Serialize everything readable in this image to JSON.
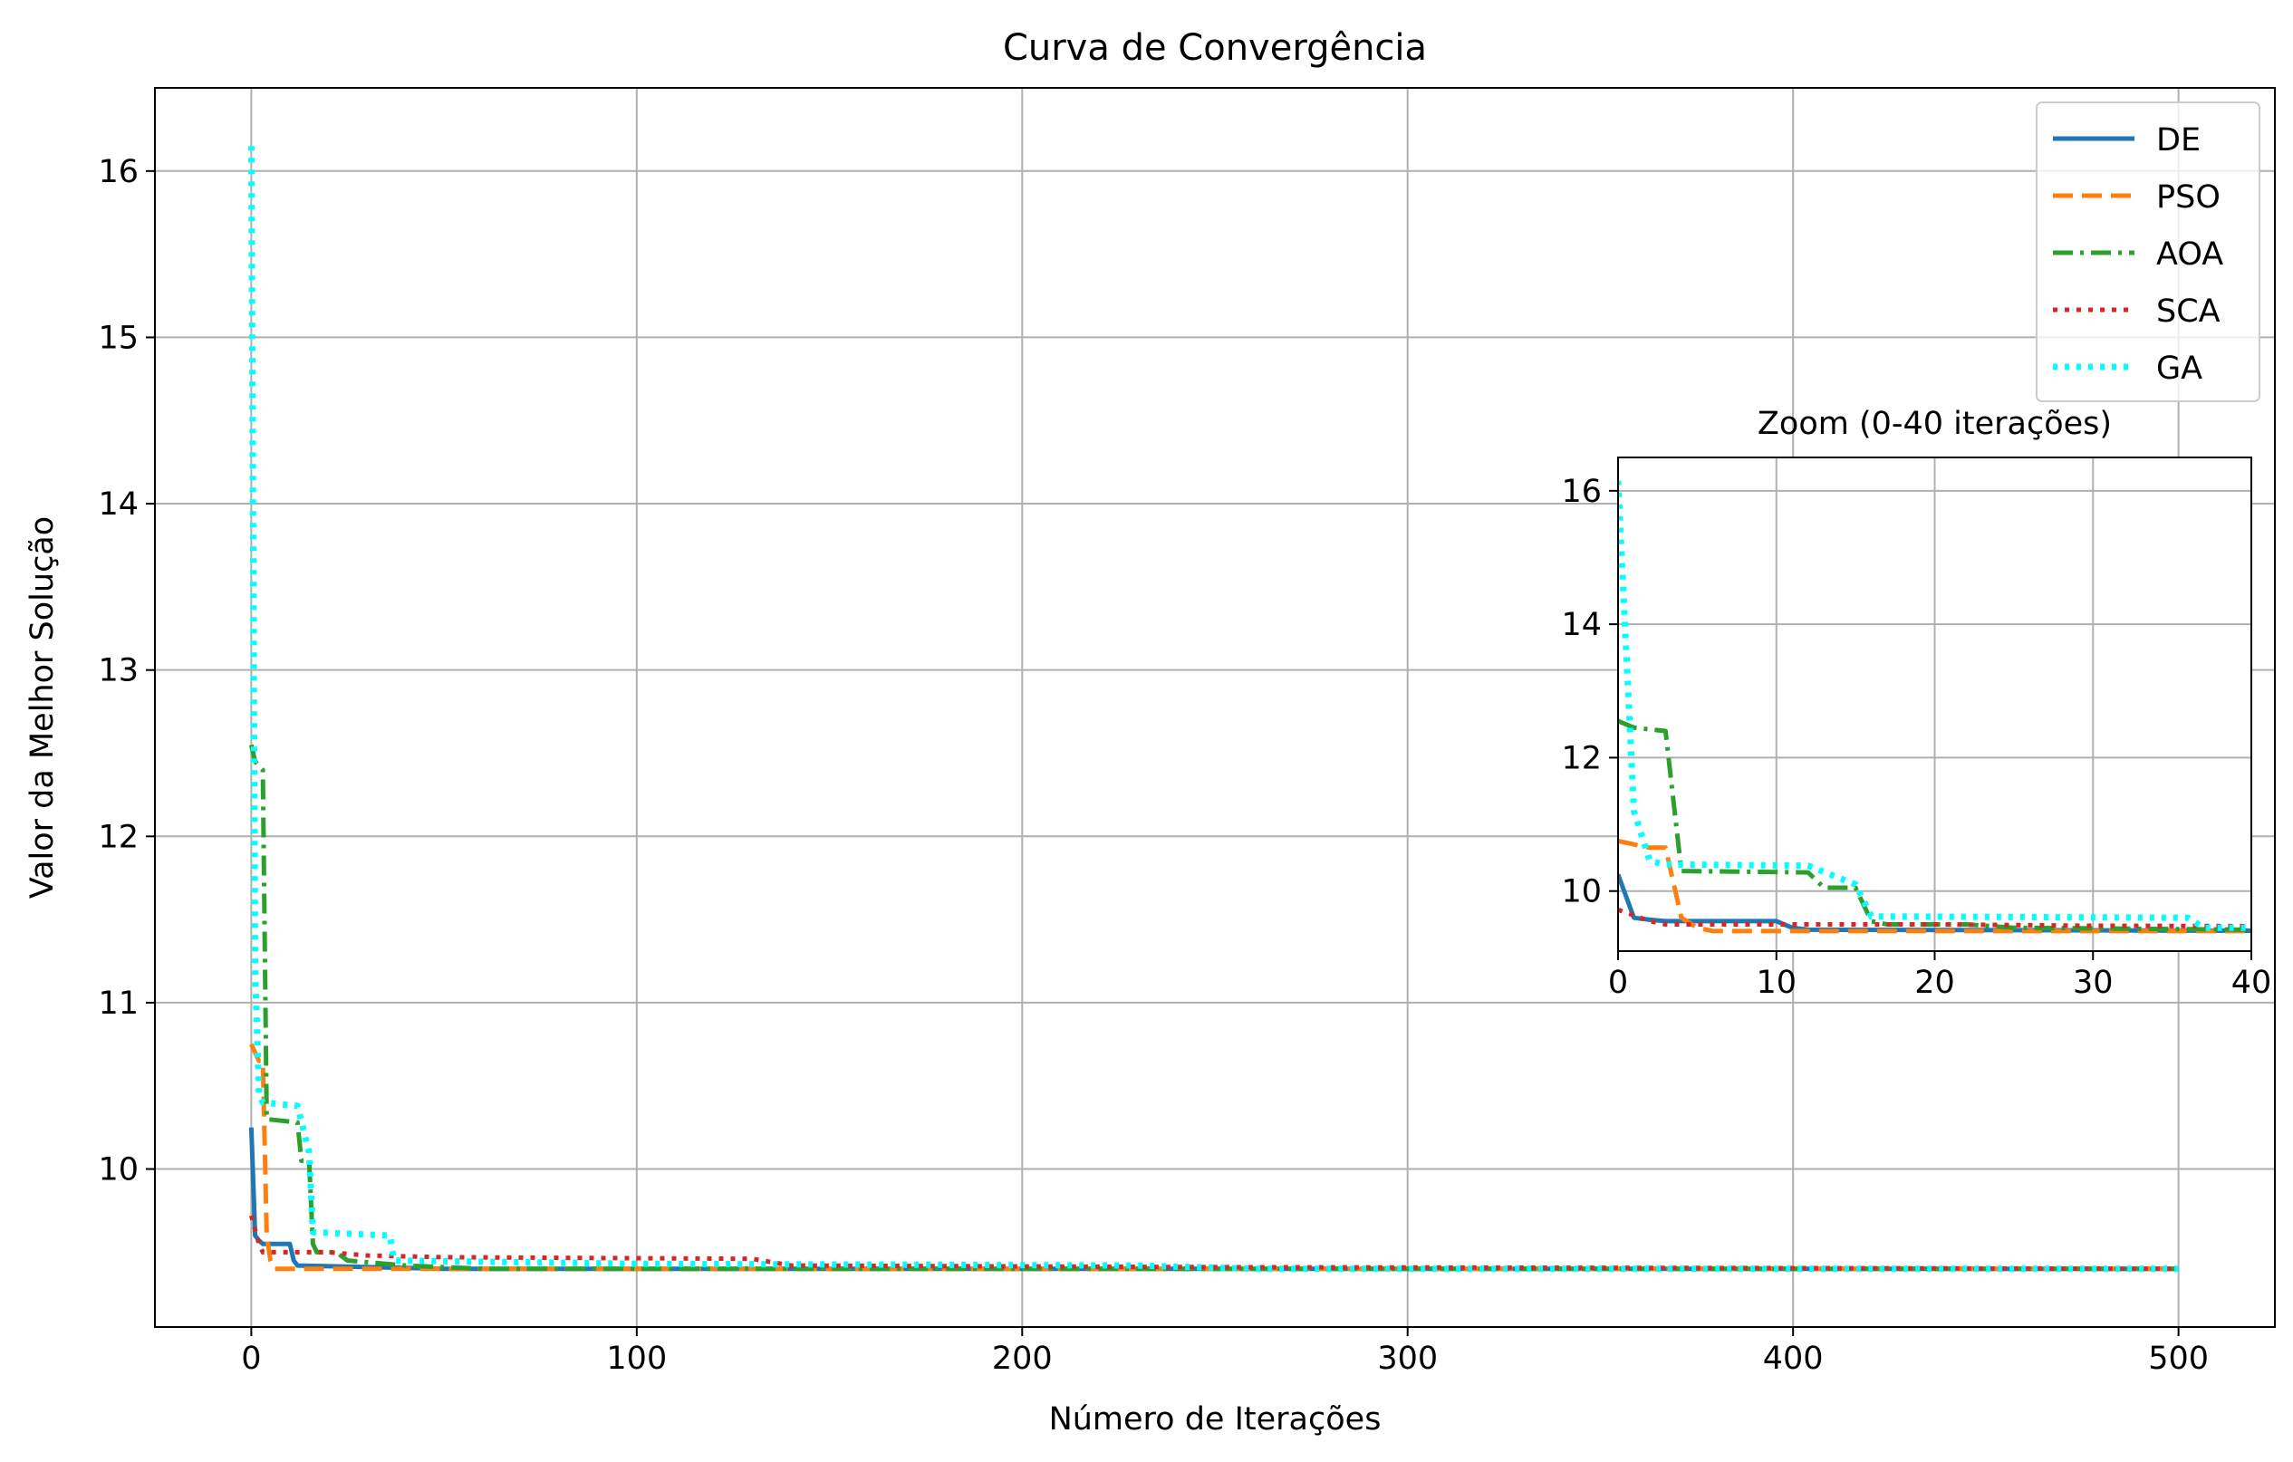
{
  "chart_data": [
    {
      "type": "line",
      "title": "Curva de Convergência",
      "xlabel": "Número de Iterações",
      "ylabel": "Valor da Melhor Solução",
      "xlim": [
        -25,
        525
      ],
      "ylim": [
        9.05,
        16.5
      ],
      "xticks": [
        0,
        100,
        200,
        300,
        400,
        500
      ],
      "yticks": [
        10,
        11,
        12,
        13,
        14,
        15,
        16
      ],
      "grid": true,
      "legend": "top-right",
      "series": [
        {
          "name": "DE",
          "color": "#1f77b4",
          "style": "solid",
          "points": [
            [
              0,
              10.25
            ],
            [
              1,
              9.6
            ],
            [
              2,
              9.57
            ],
            [
              3,
              9.55
            ],
            [
              10,
              9.55
            ],
            [
              11,
              9.45
            ],
            [
              12,
              9.42
            ],
            [
              50,
              9.4
            ],
            [
              500,
              9.4
            ]
          ]
        },
        {
          "name": "PSO",
          "color": "#ff7f0e",
          "style": "dashed",
          "points": [
            [
              0,
              10.75
            ],
            [
              1,
              10.7
            ],
            [
              2,
              10.65
            ],
            [
              3,
              10.65
            ],
            [
              4,
              9.6
            ],
            [
              5,
              9.45
            ],
            [
              6,
              9.4
            ],
            [
              500,
              9.4
            ]
          ]
        },
        {
          "name": "AOA",
          "color": "#2ca02c",
          "style": "dashdot",
          "points": [
            [
              0,
              12.55
            ],
            [
              1,
              12.45
            ],
            [
              3,
              12.4
            ],
            [
              4,
              10.3
            ],
            [
              12,
              10.28
            ],
            [
              13,
              10.05
            ],
            [
              15,
              10.05
            ],
            [
              16,
              9.55
            ],
            [
              17,
              9.5
            ],
            [
              22,
              9.5
            ],
            [
              25,
              9.45
            ],
            [
              40,
              9.42
            ],
            [
              60,
              9.4
            ],
            [
              500,
              9.4
            ]
          ]
        },
        {
          "name": "SCA",
          "color": "#d62728",
          "style": "dotted",
          "points": [
            [
              0,
              9.72
            ],
            [
              2,
              9.55
            ],
            [
              3,
              9.5
            ],
            [
              20,
              9.5
            ],
            [
              30,
              9.48
            ],
            [
              50,
              9.47
            ],
            [
              130,
              9.46
            ],
            [
              140,
              9.42
            ],
            [
              250,
              9.41
            ],
            [
              500,
              9.4
            ]
          ]
        },
        {
          "name": "GA",
          "color": "#00ffff",
          "style": "dotted",
          "points": [
            [
              0,
              16.15
            ],
            [
              1,
              11.2
            ],
            [
              2,
              10.45
            ],
            [
              3,
              10.4
            ],
            [
              12,
              10.38
            ],
            [
              15,
              10.1
            ],
            [
              16,
              9.62
            ],
            [
              36,
              9.6
            ],
            [
              37,
              9.45
            ],
            [
              100,
              9.43
            ],
            [
              230,
              9.42
            ],
            [
              260,
              9.4
            ],
            [
              500,
              9.4
            ]
          ]
        }
      ]
    },
    {
      "type": "line",
      "title": "Zoom (0-40 iterações)",
      "xlim": [
        0,
        40
      ],
      "ylim": [
        9.1,
        16.5
      ],
      "xticks": [
        0,
        10,
        20,
        30,
        40
      ],
      "yticks": [
        10,
        12,
        14,
        16
      ],
      "grid": true
    }
  ]
}
